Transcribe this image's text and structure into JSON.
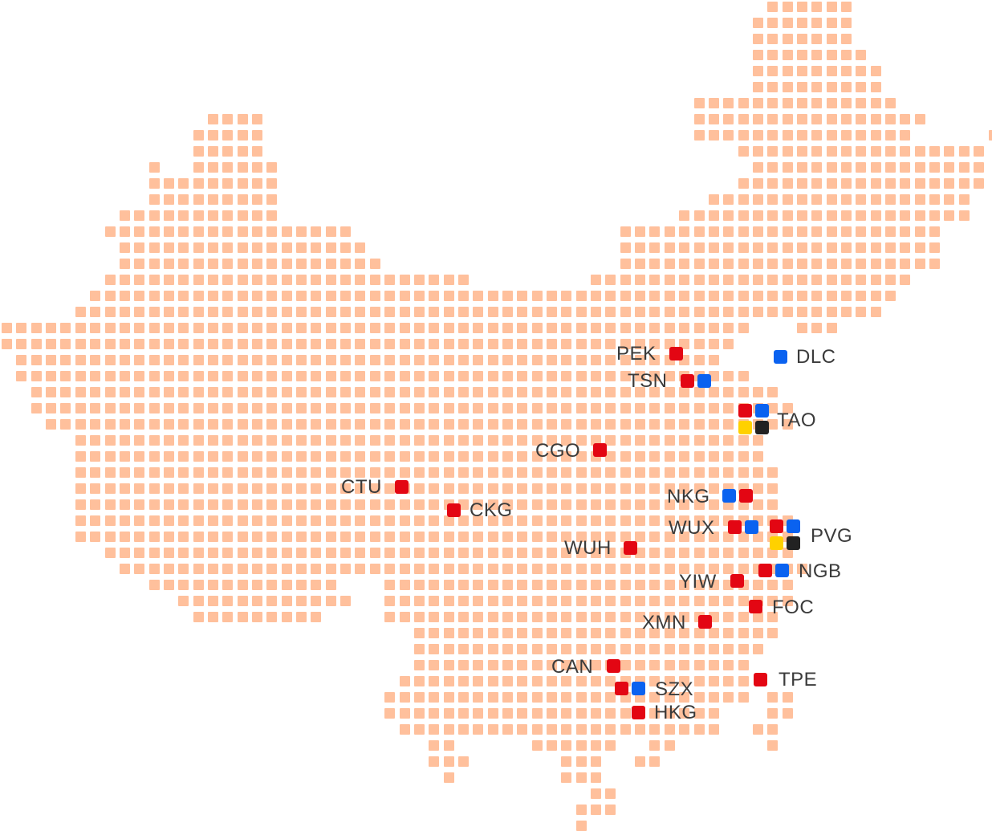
{
  "map": {
    "tile_color": "#ffc09c",
    "marker_colors": {
      "red": "#e30613",
      "blue": "#0a62f0",
      "yellow": "#ffd100",
      "black": "#222222"
    },
    "cities": [
      {
        "code": "PEK",
        "markers": [
          "red"
        ]
      },
      {
        "code": "DLC",
        "markers": [
          "blue"
        ]
      },
      {
        "code": "TSN",
        "markers": [
          "red",
          "blue"
        ]
      },
      {
        "code": "TAO",
        "markers": [
          "red",
          "blue",
          "yellow",
          "black"
        ]
      },
      {
        "code": "CGO",
        "markers": [
          "red"
        ]
      },
      {
        "code": "CTU",
        "markers": [
          "red"
        ]
      },
      {
        "code": "CKG",
        "markers": [
          "red"
        ]
      },
      {
        "code": "NKG",
        "markers": [
          "blue",
          "red"
        ]
      },
      {
        "code": "WUX",
        "markers": [
          "red",
          "blue"
        ]
      },
      {
        "code": "PVG",
        "markers": [
          "red",
          "blue",
          "yellow",
          "black"
        ]
      },
      {
        "code": "WUH",
        "markers": [
          "red"
        ]
      },
      {
        "code": "NGB",
        "markers": [
          "red",
          "blue"
        ]
      },
      {
        "code": "YIW",
        "markers": [
          "red"
        ]
      },
      {
        "code": "FOC",
        "markers": [
          "red"
        ]
      },
      {
        "code": "XMN",
        "markers": [
          "red"
        ]
      },
      {
        "code": "CAN",
        "markers": [
          "red"
        ]
      },
      {
        "code": "SZX",
        "markers": [
          "red",
          "blue"
        ]
      },
      {
        "code": "HKG",
        "markers": [
          "red"
        ]
      },
      {
        "code": "TPE",
        "markers": [
          "red"
        ]
      }
    ]
  }
}
